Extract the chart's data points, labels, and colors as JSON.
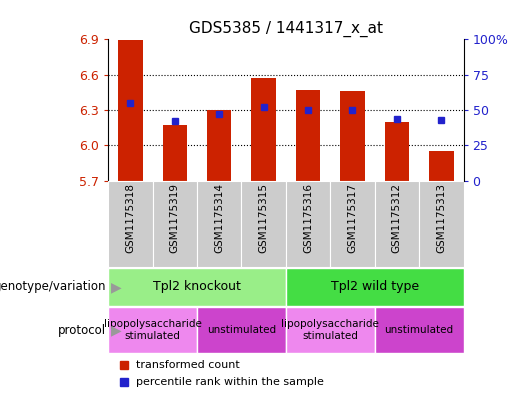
{
  "title": "GDS5385 / 1441317_x_at",
  "samples": [
    "GSM1175318",
    "GSM1175319",
    "GSM1175314",
    "GSM1175315",
    "GSM1175316",
    "GSM1175317",
    "GSM1175312",
    "GSM1175313"
  ],
  "red_values": [
    6.89,
    6.17,
    6.3,
    6.57,
    6.47,
    6.46,
    6.2,
    5.95
  ],
  "blue_values": [
    55,
    42,
    47,
    52,
    50,
    50,
    44,
    43
  ],
  "ymin": 5.7,
  "ymax": 6.9,
  "yticks": [
    5.7,
    6.0,
    6.3,
    6.6,
    6.9
  ],
  "right_yticks": [
    0,
    25,
    50,
    75,
    100
  ],
  "right_yticklabels": [
    "0",
    "25",
    "50",
    "75",
    "100%"
  ],
  "bar_color": "#cc2200",
  "dot_color": "#2222cc",
  "sample_bg": "#cccccc",
  "genotype_groups": [
    {
      "label": "Tpl2 knockout",
      "start": 0,
      "end": 3,
      "color": "#99ee88"
    },
    {
      "label": "Tpl2 wild type",
      "start": 4,
      "end": 7,
      "color": "#44dd44"
    }
  ],
  "protocol_groups": [
    {
      "label": "lipopolysaccharide\nstimulated",
      "start": 0,
      "end": 1,
      "color": "#ee88ee"
    },
    {
      "label": "unstimulated",
      "start": 2,
      "end": 3,
      "color": "#cc44cc"
    },
    {
      "label": "lipopolysaccharide\nstimulated",
      "start": 4,
      "end": 5,
      "color": "#ee88ee"
    },
    {
      "label": "unstimulated",
      "start": 6,
      "end": 7,
      "color": "#cc44cc"
    }
  ],
  "genotype_label": "genotype/variation",
  "protocol_label": "protocol",
  "legend_red_label": "transformed count",
  "legend_blue_label": "percentile rank within the sample"
}
